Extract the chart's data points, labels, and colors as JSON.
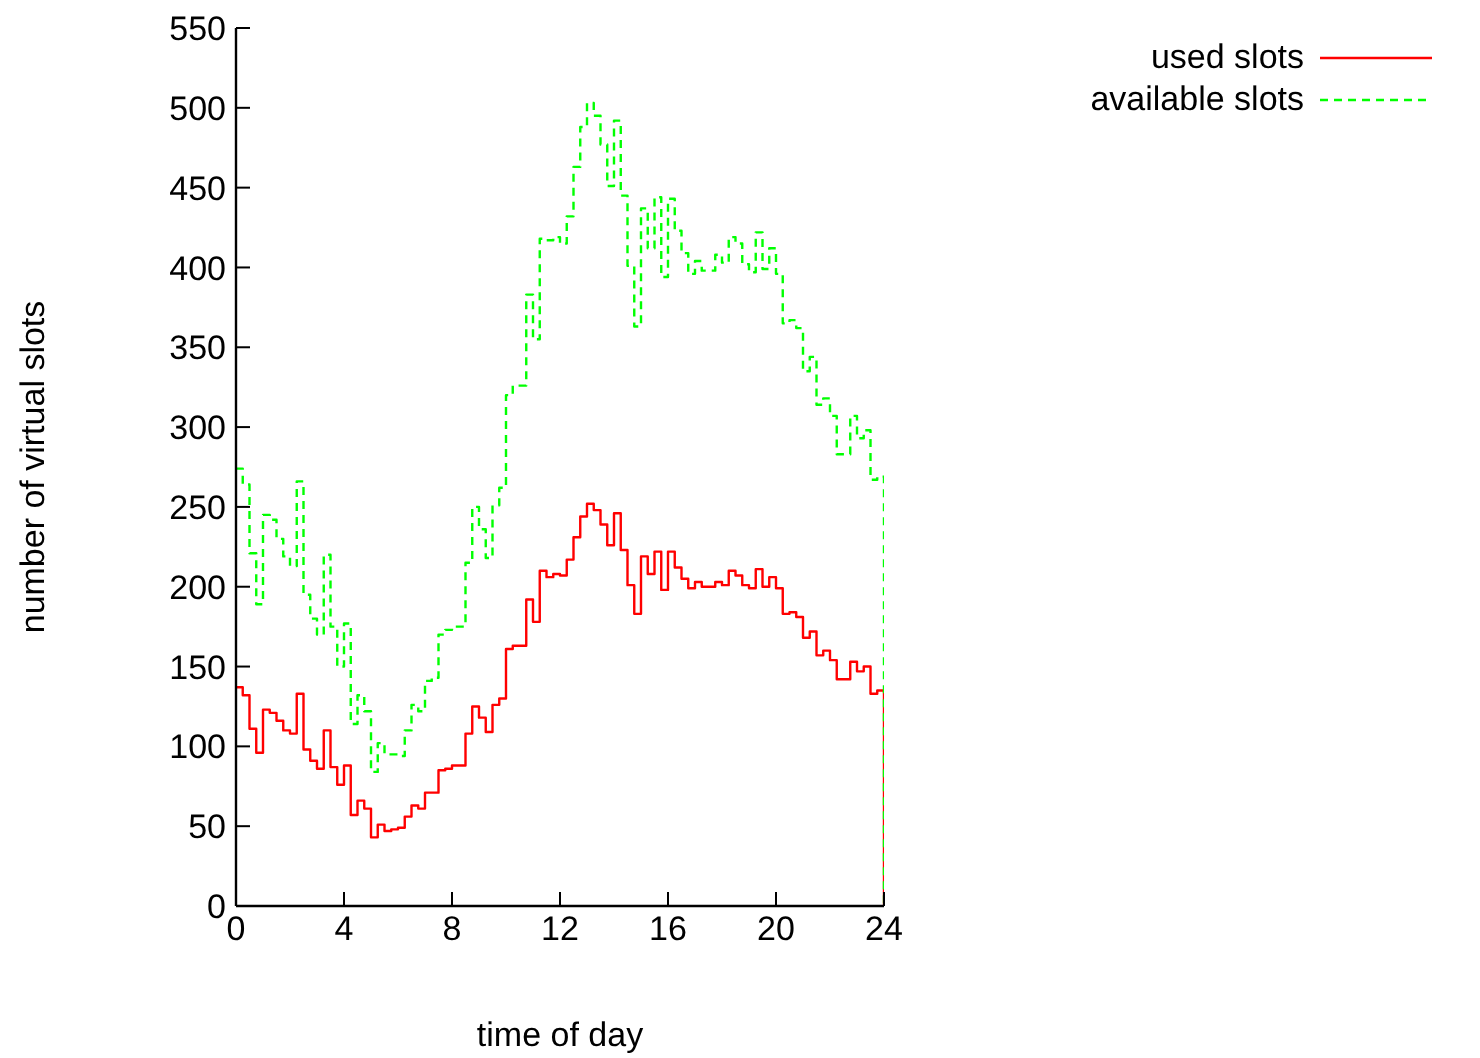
{
  "chart_data": {
    "type": "step",
    "xlabel": "time of day",
    "ylabel": "number of virtual slots",
    "x": [
      0,
      0.25,
      0.5,
      0.75,
      1,
      1.25,
      1.5,
      1.75,
      2,
      2.25,
      2.5,
      2.75,
      3,
      3.25,
      3.5,
      3.75,
      4,
      4.25,
      4.5,
      4.75,
      5,
      5.25,
      5.5,
      5.75,
      6,
      6.25,
      6.5,
      6.75,
      7,
      7.25,
      7.5,
      7.75,
      8,
      8.25,
      8.5,
      8.75,
      9,
      9.25,
      9.5,
      9.75,
      10,
      10.25,
      10.5,
      10.75,
      11,
      11.25,
      11.5,
      11.75,
      12,
      12.25,
      12.5,
      12.75,
      13,
      13.25,
      13.5,
      13.75,
      14,
      14.25,
      14.5,
      14.75,
      15,
      15.25,
      15.5,
      15.75,
      16,
      16.25,
      16.5,
      16.75,
      17,
      17.25,
      17.5,
      17.75,
      18,
      18.25,
      18.5,
      18.75,
      19,
      19.25,
      19.5,
      19.75,
      20,
      20.25,
      20.5,
      20.75,
      21,
      21.25,
      21.5,
      21.75,
      22,
      22.25,
      22.5,
      22.75,
      23,
      23.25,
      23.5,
      23.75,
      24
    ],
    "series": [
      {
        "name": "used slots",
        "color": "#ff0000",
        "line_style": "solid",
        "values": [
          137,
          132,
          111,
          96,
          123,
          121,
          116,
          110,
          108,
          133,
          98,
          91,
          86,
          110,
          87,
          76,
          88,
          57,
          66,
          61,
          43,
          51,
          47,
          48,
          49,
          56,
          63,
          61,
          71,
          71,
          85,
          86,
          88,
          88,
          108,
          125,
          118,
          109,
          126,
          130,
          161,
          163,
          163,
          192,
          178,
          210,
          206,
          208,
          207,
          217,
          231,
          244,
          252,
          248,
          239,
          226,
          246,
          223,
          201,
          183,
          219,
          208,
          222,
          198,
          222,
          212,
          205,
          199,
          203,
          200,
          200,
          203,
          201,
          210,
          207,
          201,
          199,
          211,
          200,
          206,
          199,
          183,
          184,
          181,
          168,
          172,
          157,
          160,
          154,
          142,
          142,
          153,
          147,
          150,
          133,
          135,
          0
        ]
      },
      {
        "name": "available slots",
        "color": "#00ff00",
        "line_style": "dashed",
        "values": [
          274,
          264,
          221,
          189,
          245,
          242,
          230,
          219,
          213,
          266,
          195,
          180,
          170,
          220,
          175,
          150,
          177,
          114,
          132,
          122,
          84,
          102,
          95,
          95,
          94,
          110,
          126,
          122,
          141,
          143,
          170,
          173,
          175,
          175,
          215,
          250,
          236,
          218,
          251,
          262,
          320,
          326,
          326,
          383,
          355,
          418,
          417,
          419,
          415,
          432,
          463,
          488,
          503,
          495,
          477,
          451,
          492,
          445,
          401,
          363,
          437,
          412,
          444,
          394,
          443,
          423,
          409,
          396,
          404,
          398,
          398,
          408,
          403,
          419,
          415,
          402,
          397,
          422,
          399,
          412,
          396,
          365,
          367,
          362,
          335,
          344,
          314,
          318,
          307,
          283,
          283,
          307,
          293,
          298,
          267,
          269,
          0
        ]
      }
    ],
    "xlim": [
      0,
      24
    ],
    "xticks": [
      0,
      4,
      8,
      12,
      16,
      20,
      24
    ],
    "ylim": [
      0,
      550
    ],
    "yticks": [
      0,
      50,
      100,
      150,
      200,
      250,
      300,
      350,
      400,
      450,
      500,
      550
    ],
    "grid": false,
    "legend": "top right",
    "marker": "none"
  }
}
